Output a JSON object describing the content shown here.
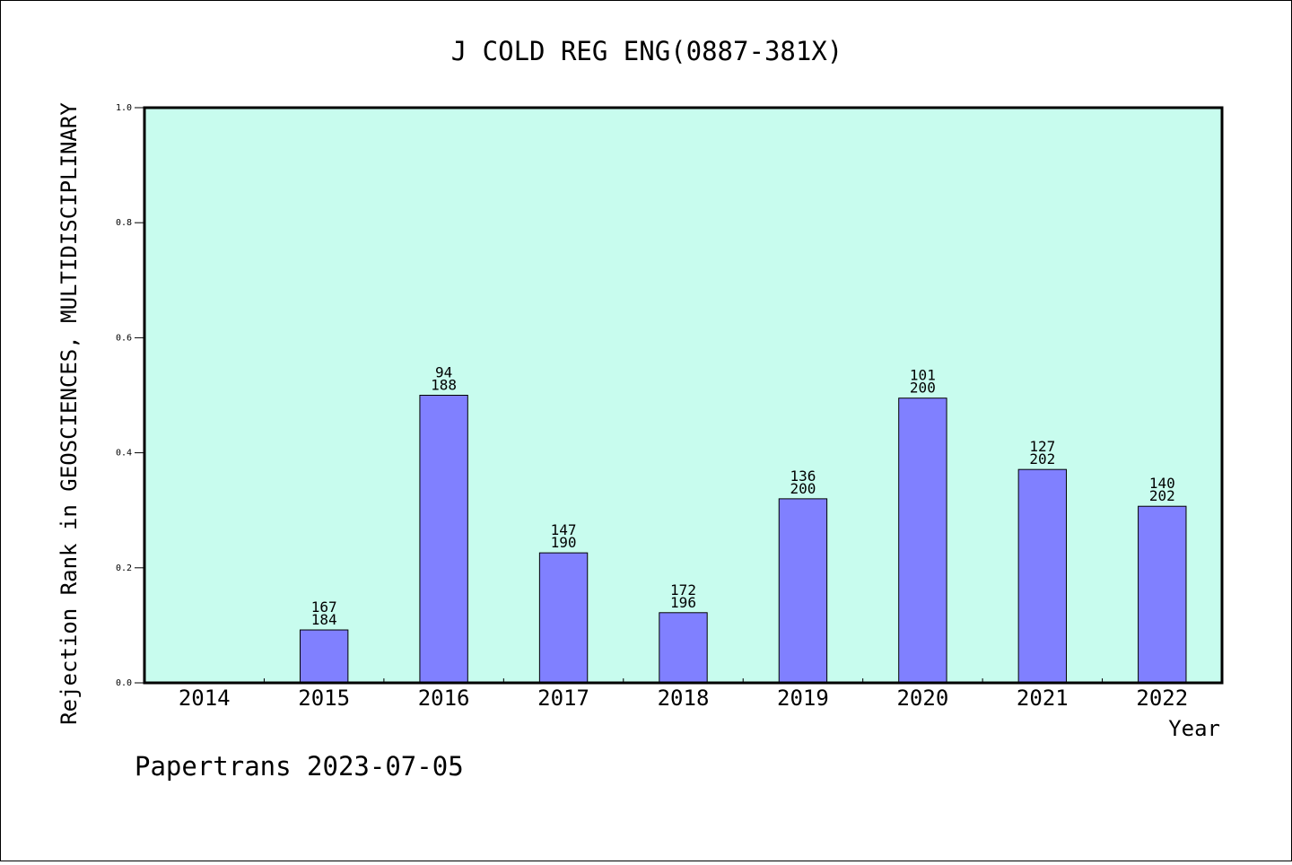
{
  "chart_data": {
    "type": "bar",
    "title": "J COLD REG ENG(0887-381X)",
    "ylabel": "Rejection Rank in GEOSCIENCES, MULTIDISCIPLINARY",
    "xlabel": "Year",
    "ylim": [
      0,
      1.0
    ],
    "yticks": [
      "0.0",
      "0.2",
      "0.4",
      "0.6",
      "0.8",
      "1.0"
    ],
    "categories": [
      "2014",
      "2015",
      "2016",
      "2017",
      "2018",
      "2019",
      "2020",
      "2021",
      "2022"
    ],
    "values": [
      null,
      0.092,
      0.5,
      0.226,
      0.122,
      0.32,
      0.495,
      0.371,
      0.307
    ],
    "labels_top": [
      "",
      "167",
      "94",
      "147",
      "172",
      "136",
      "101",
      "127",
      "140"
    ],
    "labels_bottom": [
      "",
      "184",
      "188",
      "190",
      "196",
      "200",
      "200",
      "202",
      "202"
    ],
    "grid": false,
    "colors": {
      "plot_background": "#c8fcee",
      "bar_fill": "#8080ff",
      "bar_stroke": "#000000"
    }
  },
  "footer": "Papertrans 2023-07-05"
}
